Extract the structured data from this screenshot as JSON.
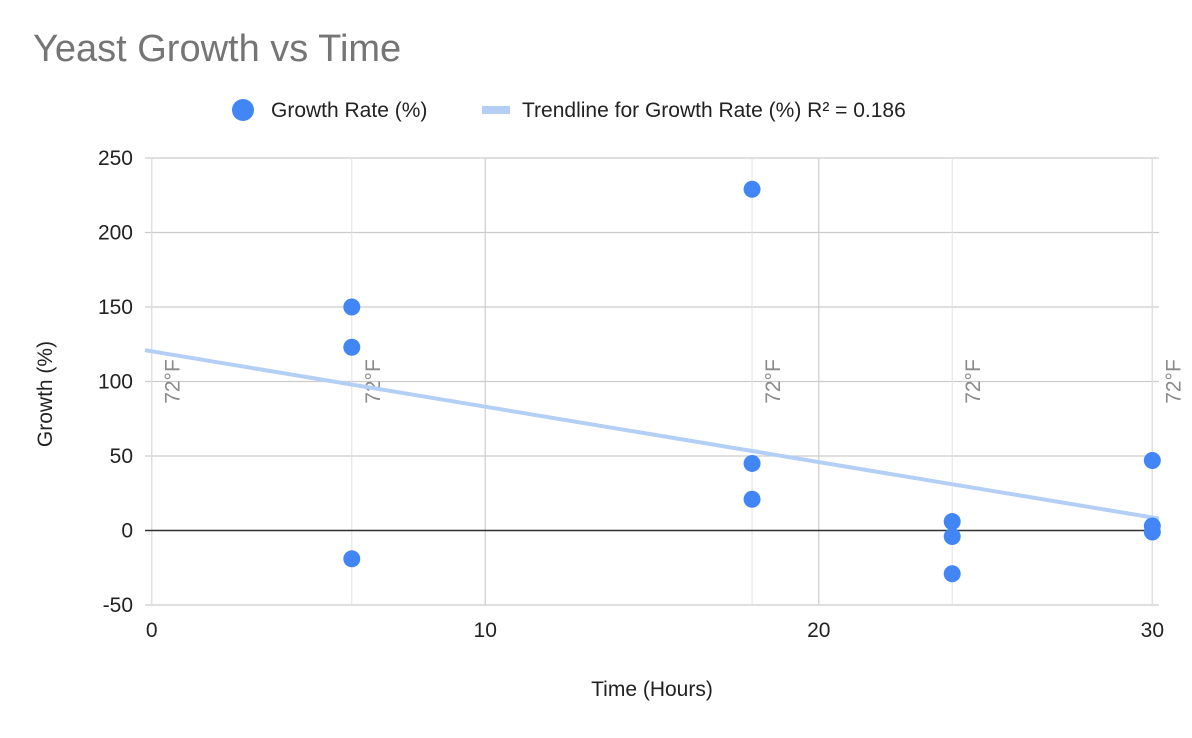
{
  "chart_data": {
    "type": "scatter",
    "title": "Yeast Growth vs Time",
    "xlabel": "Time (Hours)",
    "ylabel": "Growth (%)",
    "xlim": [
      -0.2,
      30.2
    ],
    "ylim": [
      -50,
      250
    ],
    "x_ticks": [
      0,
      10,
      20,
      30
    ],
    "y_ticks": [
      250,
      200,
      150,
      100,
      50,
      0,
      -50
    ],
    "x_tick_labels": [
      "0",
      "10",
      "20",
      "30"
    ],
    "y_tick_labels": [
      "250",
      "200",
      "150",
      "100",
      "50",
      "0",
      "-50"
    ],
    "grid": true,
    "legend_position": "top",
    "series": [
      {
        "name": "Growth Rate (%)",
        "color": "#4285f4",
        "points": [
          {
            "x": 6,
            "y": 150
          },
          {
            "x": 6,
            "y": 123
          },
          {
            "x": 6,
            "y": -19
          },
          {
            "x": 18,
            "y": 229
          },
          {
            "x": 18,
            "y": 45
          },
          {
            "x": 18,
            "y": 21
          },
          {
            "x": 24,
            "y": 6
          },
          {
            "x": 24,
            "y": -4
          },
          {
            "x": 24,
            "y": -29
          },
          {
            "x": 30,
            "y": 47
          },
          {
            "x": 30,
            "y": 3
          },
          {
            "x": 30,
            "y": -1
          }
        ]
      }
    ],
    "trendline": {
      "name": "Trendline for Growth Rate (%) R² = 0.186",
      "color": "#b4cff5",
      "r_squared": 0.186,
      "start": {
        "x": -0.2,
        "y": 121
      },
      "end": {
        "x": 30.2,
        "y": 8
      }
    },
    "annotations": [
      {
        "x": 0,
        "text": "72°F"
      },
      {
        "x": 6,
        "text": "72°F"
      },
      {
        "x": 18,
        "text": "72°F"
      },
      {
        "x": 24,
        "text": "72°F"
      },
      {
        "x": 30,
        "text": "72°F"
      }
    ]
  }
}
